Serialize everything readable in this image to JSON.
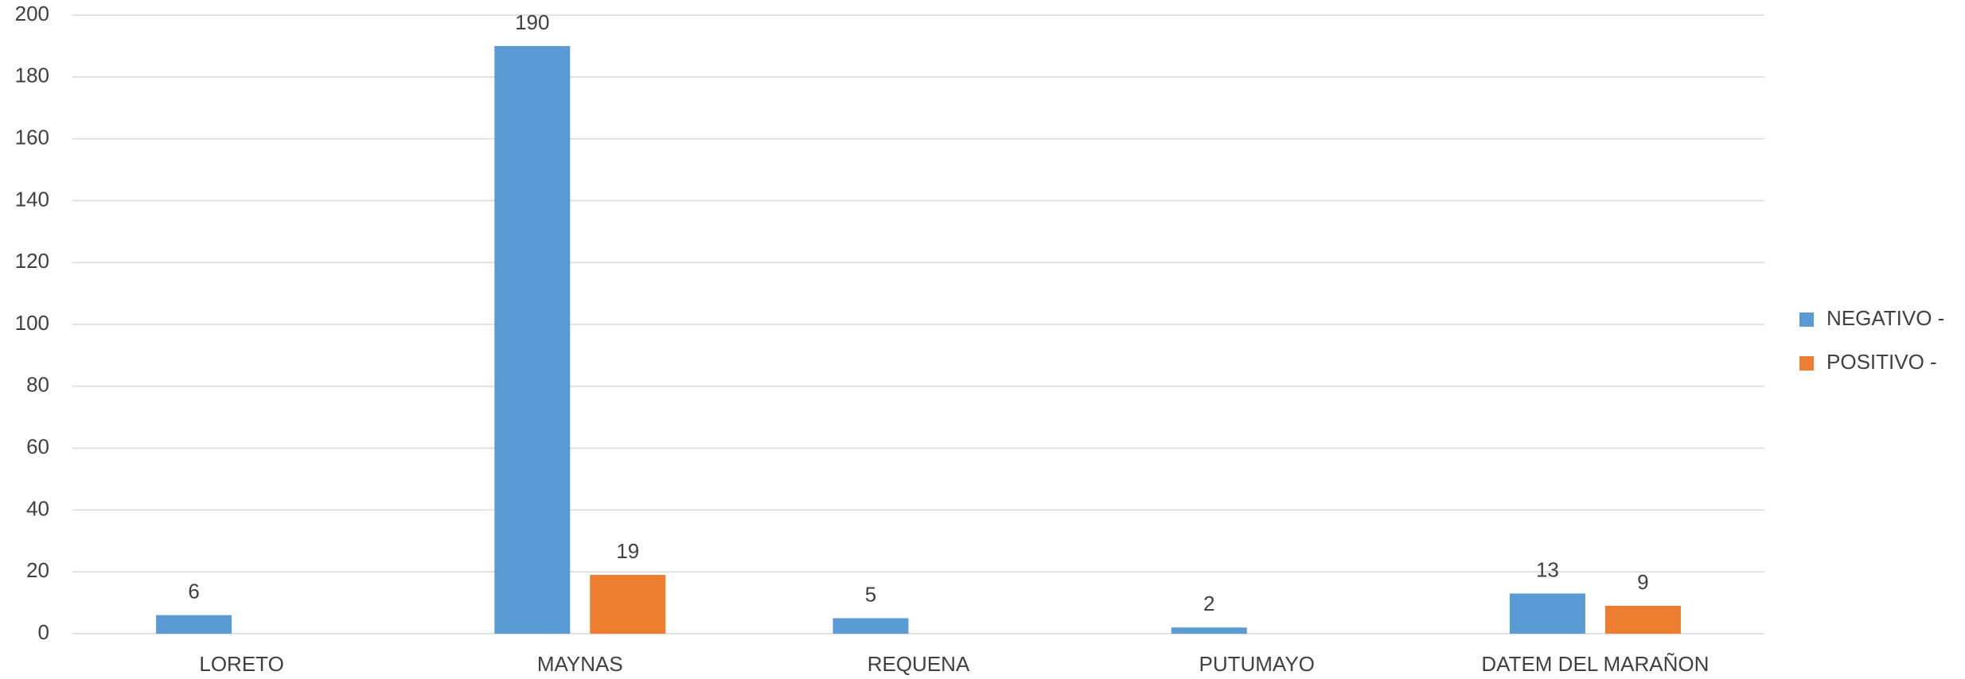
{
  "chart_data": {
    "type": "bar",
    "categories": [
      "LORETO",
      "MAYNAS",
      "REQUENA",
      "PUTUMAYO",
      "DATEM DEL MARAÑON"
    ],
    "series": [
      {
        "name": "NEGATIVO -",
        "color": "#5b9bd5",
        "values": [
          6,
          190,
          5,
          2,
          13
        ]
      },
      {
        "name": "POSITIVO -",
        "color": "#ed7d31",
        "values": [
          null,
          19,
          null,
          null,
          9
        ]
      }
    ],
    "ylim": [
      0,
      200
    ],
    "yticks": [
      0,
      20,
      40,
      60,
      80,
      100,
      120,
      140,
      160,
      180,
      200
    ],
    "grid": true,
    "legend": "right"
  }
}
